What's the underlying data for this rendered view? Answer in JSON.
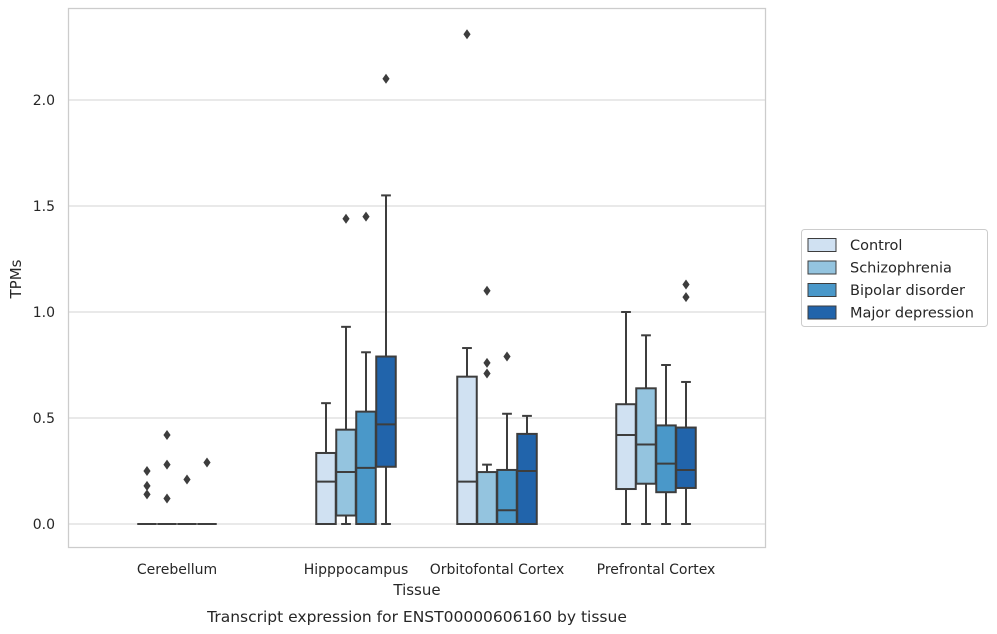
{
  "chart_data": {
    "type": "box",
    "caption": "Transcript expression for ENST00000606160 by tissue",
    "xlabel": "Tissue",
    "ylabel": "TPMs",
    "ylim": [
      -0.11,
      2.45
    ],
    "yticks": [
      0.0,
      0.5,
      1.0,
      1.5,
      2.0
    ],
    "ytick_labels": [
      "0.0",
      "0.5",
      "1.0",
      "1.5",
      "2.0"
    ],
    "grid": "horizontal",
    "legend_position": "right",
    "categories": [
      "Cerebellum",
      "Hipppocampus",
      "Orbitofontal Cortex",
      "Prefrontal Cortex"
    ],
    "series": [
      {
        "name": "Control",
        "color": "#d0e1f2",
        "boxes": [
          {
            "q1": 0.0,
            "median": 0.0,
            "q3": 0.0,
            "whislo": 0.0,
            "whishi": 0.0,
            "fliers": [
              0.25,
              0.18,
              0.14
            ]
          },
          {
            "q1": 0.0,
            "median": 0.2,
            "q3": 0.335,
            "whislo": 0.0,
            "whishi": 0.57,
            "fliers": []
          },
          {
            "q1": 0.0,
            "median": 0.2,
            "q3": 0.695,
            "whislo": 0.0,
            "whishi": 0.83,
            "fliers": [
              2.31
            ]
          },
          {
            "q1": 0.165,
            "median": 0.42,
            "q3": 0.565,
            "whislo": 0.0,
            "whishi": 1.0,
            "fliers": []
          }
        ]
      },
      {
        "name": "Schizophrenia",
        "color": "#94c4df",
        "boxes": [
          {
            "q1": 0.0,
            "median": 0.0,
            "q3": 0.0,
            "whislo": 0.0,
            "whishi": 0.0,
            "fliers": [
              0.42,
              0.28,
              0.12
            ]
          },
          {
            "q1": 0.04,
            "median": 0.245,
            "q3": 0.445,
            "whislo": 0.0,
            "whishi": 0.93,
            "fliers": [
              1.44
            ]
          },
          {
            "q1": 0.0,
            "median": 0.0,
            "q3": 0.245,
            "whislo": 0.0,
            "whishi": 0.28,
            "fliers": [
              1.1,
              0.76,
              0.71
            ]
          },
          {
            "q1": 0.19,
            "median": 0.375,
            "q3": 0.64,
            "whislo": 0.0,
            "whishi": 0.89,
            "fliers": []
          }
        ]
      },
      {
        "name": "Bipolar disorder",
        "color": "#4a98c9",
        "boxes": [
          {
            "q1": 0.0,
            "median": 0.0,
            "q3": 0.0,
            "whislo": 0.0,
            "whishi": 0.0,
            "fliers": [
              0.21
            ]
          },
          {
            "q1": 0.0,
            "median": 0.265,
            "q3": 0.53,
            "whislo": 0.0,
            "whishi": 0.81,
            "fliers": [
              1.45
            ]
          },
          {
            "q1": 0.0,
            "median": 0.065,
            "q3": 0.255,
            "whislo": 0.0,
            "whishi": 0.52,
            "fliers": [
              0.79
            ]
          },
          {
            "q1": 0.15,
            "median": 0.285,
            "q3": 0.465,
            "whislo": 0.0,
            "whishi": 0.75,
            "fliers": []
          }
        ]
      },
      {
        "name": "Major depression",
        "color": "#2164ab",
        "boxes": [
          {
            "q1": 0.0,
            "median": 0.0,
            "q3": 0.0,
            "whislo": 0.0,
            "whishi": 0.0,
            "fliers": [
              0.29
            ]
          },
          {
            "q1": 0.27,
            "median": 0.47,
            "q3": 0.79,
            "whislo": 0.0,
            "whishi": 1.55,
            "fliers": [
              2.1
            ]
          },
          {
            "q1": 0.0,
            "median": 0.25,
            "q3": 0.425,
            "whislo": 0.0,
            "whishi": 0.51,
            "fliers": []
          },
          {
            "q1": 0.17,
            "median": 0.255,
            "q3": 0.455,
            "whislo": 0.0,
            "whishi": 0.67,
            "fliers": [
              1.13,
              1.07
            ]
          }
        ]
      }
    ]
  }
}
